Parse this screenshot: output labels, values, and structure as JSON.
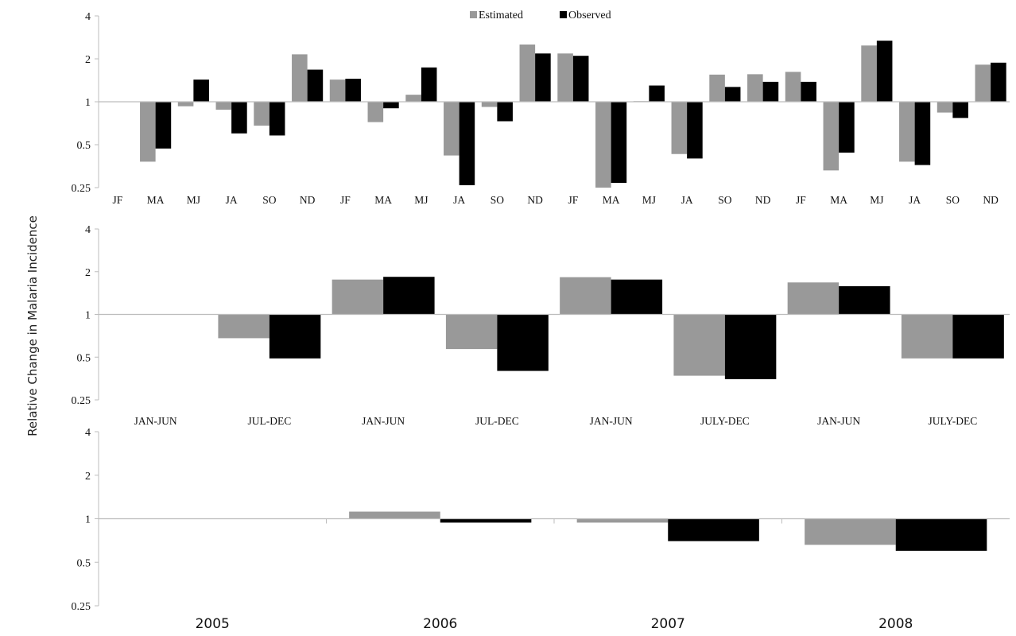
{
  "chart_data": [
    {
      "type": "bar",
      "yscale": "log2",
      "ylim": [
        0.25,
        4
      ],
      "yticks": [
        "4",
        "2",
        "1",
        "0.5",
        "0.25"
      ],
      "ytick_values": [
        4,
        2,
        1,
        0.5,
        0.25
      ],
      "categories": [
        "JF",
        "MA",
        "MJ",
        "JA",
        "SO",
        "ND",
        "JF",
        "MA",
        "MJ",
        "JA",
        "SO",
        "ND",
        "JF",
        "MA",
        "MJ",
        "JA",
        "SO",
        "ND",
        "JF",
        "MA",
        "MJ",
        "JA",
        "SO",
        "ND"
      ],
      "series": [
        {
          "name": "Estimated",
          "color": "#999999",
          "values": [
            1.0,
            0.38,
            0.93,
            0.88,
            0.68,
            2.15,
            1.43,
            0.72,
            1.12,
            0.42,
            0.92,
            2.52,
            2.18,
            0.25,
            1.01,
            0.43,
            1.55,
            1.56,
            1.62,
            0.33,
            2.48,
            0.38,
            0.84,
            1.82
          ]
        },
        {
          "name": "Observed",
          "color": "#000000",
          "values": [
            1.0,
            0.47,
            1.43,
            0.6,
            0.58,
            1.68,
            1.45,
            0.9,
            1.74,
            0.26,
            0.73,
            2.18,
            2.1,
            0.27,
            1.3,
            0.4,
            1.27,
            1.38,
            1.38,
            0.44,
            2.68,
            0.36,
            0.77,
            1.88
          ]
        }
      ],
      "legend": "top-center"
    },
    {
      "type": "bar",
      "yscale": "log2",
      "ylim": [
        0.25,
        4
      ],
      "yticks": [
        "4",
        "2",
        "1",
        "0.5",
        "0.25"
      ],
      "ytick_values": [
        4,
        2,
        1,
        0.5,
        0.25
      ],
      "categories": [
        "JAN-JUN",
        "JUL-DEC",
        "JAN-JUN",
        "JUL-DEC",
        "JAN-JUN",
        "JULY-DEC",
        "JAN-JUN",
        "JULY-DEC"
      ],
      "series": [
        {
          "name": "Estimated",
          "color": "#999999",
          "values": [
            1.0,
            0.68,
            1.76,
            0.57,
            1.83,
            0.37,
            1.68,
            0.49
          ]
        },
        {
          "name": "Observed",
          "color": "#000000",
          "values": [
            1.0,
            0.49,
            1.84,
            0.4,
            1.76,
            0.35,
            1.58,
            0.49
          ]
        }
      ]
    },
    {
      "type": "bar",
      "yscale": "log2",
      "ylim": [
        0.25,
        4
      ],
      "yticks": [
        "4",
        "2",
        "1",
        "0.5",
        "0.25"
      ],
      "ytick_values": [
        4,
        2,
        1,
        0.5,
        0.25
      ],
      "categories": [
        "2005",
        "2006",
        "2007",
        "2008"
      ],
      "series": [
        {
          "name": "Estimated",
          "color": "#999999",
          "values": [
            1.0,
            1.12,
            0.94,
            0.66
          ]
        },
        {
          "name": "Observed",
          "color": "#000000",
          "values": [
            1.0,
            0.94,
            0.7,
            0.6
          ]
        }
      ]
    }
  ],
  "ylabel": "Relative Change in Malaria Incidence",
  "legend_entries": [
    "Estimated",
    "Observed"
  ]
}
